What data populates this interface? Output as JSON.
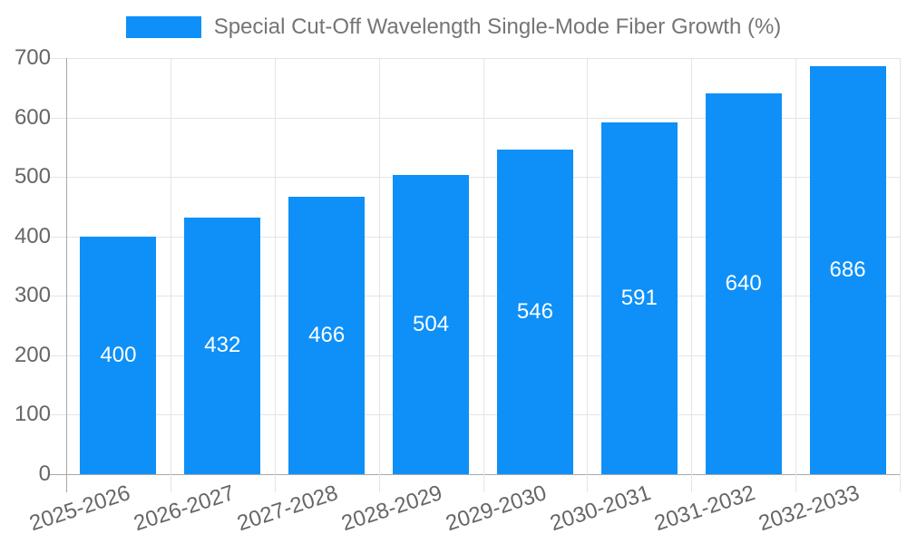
{
  "chart": {
    "legend": {
      "label": "Special Cut-Off Wavelength Single-Mode Fiber Growth (%)"
    },
    "colors": {
      "bar": "#0e90f8",
      "bar_label": "#ffffff",
      "title": "#757575",
      "axis_label": "#666666",
      "grid": "#e4e4e4",
      "axis_line": "#a8a8a8",
      "background": "#ffffff"
    }
  },
  "chart_data": {
    "type": "bar",
    "title": "Special Cut-Off Wavelength Single-Mode Fiber Growth (%)",
    "categories": [
      "2025-2026",
      "2026-2027",
      "2027-2028",
      "2028-2029",
      "2029-2030",
      "2030-2031",
      "2031-2032",
      "2032-2033"
    ],
    "values": [
      400,
      432,
      466,
      504,
      546,
      591,
      640,
      686
    ],
    "xlabel": "",
    "ylabel": "",
    "ylim": [
      0,
      700
    ],
    "yticks": [
      0,
      100,
      200,
      300,
      400,
      500,
      600,
      700
    ],
    "grid": true,
    "legend_position": "top",
    "value_labels": "inside-center"
  }
}
